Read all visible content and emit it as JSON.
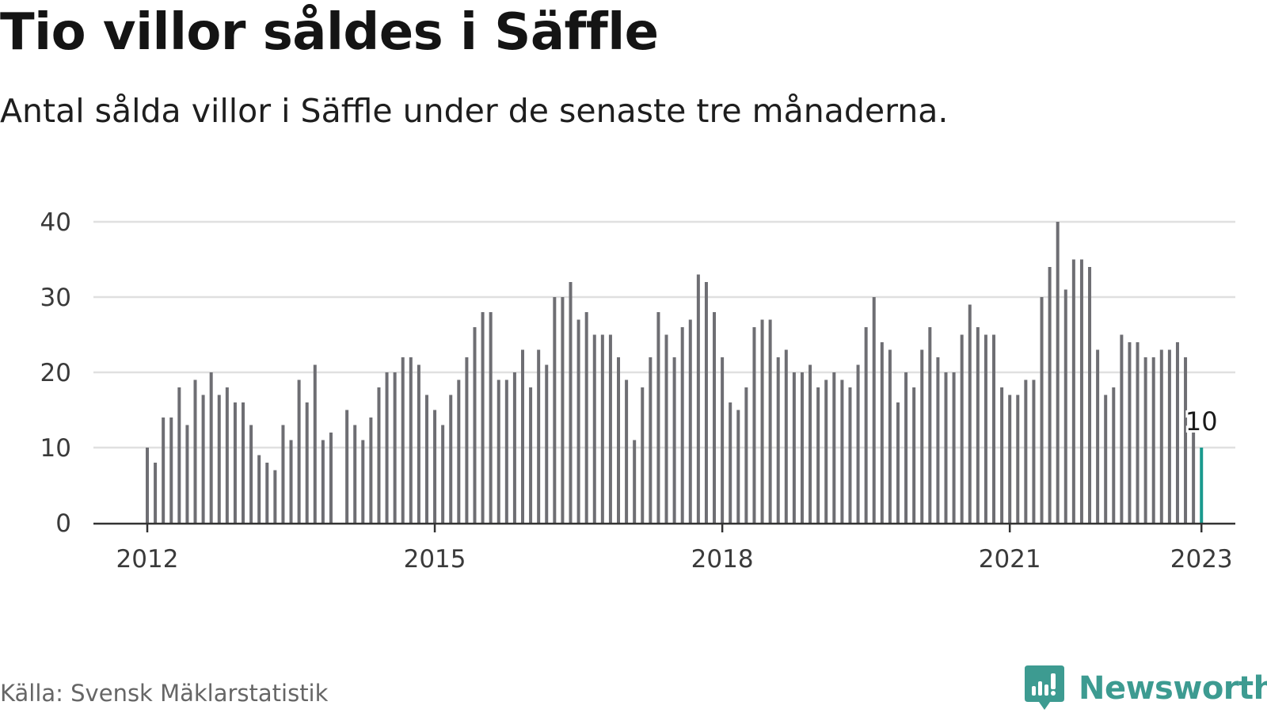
{
  "header": {
    "title": "Tio villor såldes i Säffle",
    "subtitle": "Antal sålda villor i Säffle under de senaste tre månaderna."
  },
  "footer": {
    "source": "Källa: Svensk Mäklarstatistik",
    "brand_name": "Newsworthy",
    "brand_icon": "newsworthy-logo-icon"
  },
  "colors": {
    "bar": "#6e6e73",
    "highlight": "#1a9a8e",
    "grid": "#e0e0e0",
    "axis": "#333333",
    "brand": "#3d9b91"
  },
  "chart_data": {
    "type": "bar",
    "title": "Tio villor såldes i Säffle",
    "subtitle": "Antal sålda villor i Säffle under de senaste tre månaderna.",
    "xlabel": "",
    "ylabel": "",
    "ylim": [
      0,
      40
    ],
    "yticks": [
      0,
      10,
      20,
      30,
      40
    ],
    "xticks": [
      "2012",
      "2015",
      "2018",
      "2021",
      "2023"
    ],
    "grid": true,
    "start": "2012-01",
    "frequency": "monthly",
    "highlight_label": "10",
    "values": [
      10,
      8,
      14,
      14,
      18,
      13,
      19,
      17,
      20,
      17,
      18,
      16,
      16,
      13,
      9,
      8,
      7,
      13,
      11,
      19,
      16,
      21,
      11,
      12,
      null,
      15,
      13,
      11,
      14,
      18,
      20,
      20,
      22,
      22,
      21,
      17,
      15,
      13,
      17,
      19,
      22,
      26,
      28,
      28,
      19,
      19,
      20,
      23,
      18,
      23,
      21,
      30,
      30,
      32,
      27,
      28,
      25,
      25,
      25,
      22,
      19,
      11,
      18,
      22,
      28,
      25,
      22,
      26,
      27,
      33,
      32,
      28,
      22,
      16,
      15,
      18,
      26,
      27,
      27,
      22,
      23,
      20,
      20,
      21,
      18,
      19,
      20,
      19,
      18,
      21,
      26,
      30,
      24,
      23,
      16,
      20,
      18,
      23,
      26,
      22,
      20,
      20,
      25,
      29,
      26,
      25,
      25,
      18,
      17,
      17,
      19,
      19,
      30,
      34,
      40,
      31,
      35,
      35,
      34,
      23,
      17,
      18,
      25,
      24,
      24,
      22,
      22,
      23,
      23,
      24,
      22,
      12,
      10
    ]
  }
}
